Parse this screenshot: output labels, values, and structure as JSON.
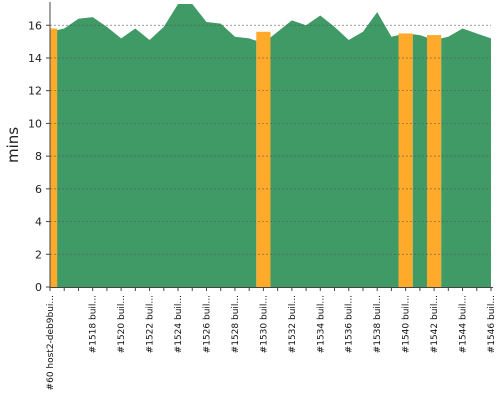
{
  "chart_data": {
    "type": "area",
    "ylabel": "mins",
    "ylim": [
      0,
      17.3
    ],
    "yticks": [
      0,
      2,
      4,
      6,
      8,
      10,
      12,
      14,
      16
    ],
    "reference_line": 16,
    "grid": true,
    "colors": {
      "success": "#3f9a65",
      "unstable": "#ffaa2a",
      "gridline": "#555555"
    },
    "x_labels": [
      "#60 host2-deb9bui...",
      "",
      "",
      "#1518 buil...",
      "",
      "#1520 buil...",
      "",
      "#1522 buil...",
      "",
      "#1524 buil...",
      "",
      "#1526 buil...",
      "",
      "#1528 buil...",
      "",
      "#1530 buil...",
      "",
      "#1532 buil...",
      "",
      "#1534 buil...",
      "",
      "#1536 buil...",
      "",
      "#1538 buil...",
      "",
      "#1540 buil...",
      "",
      "#1542 buil...",
      "",
      "#1544 buil...",
      "",
      "#1546 buil..."
    ],
    "values": [
      15.6,
      15.8,
      16.4,
      16.5,
      15.9,
      15.2,
      15.8,
      15.1,
      15.9,
      17.3,
      17.3,
      16.2,
      16.1,
      15.3,
      15.2,
      14.9,
      15.6,
      16.3,
      16.0,
      16.6,
      15.9,
      15.1,
      15.6,
      16.8,
      15.3,
      15.5,
      15.4,
      15.1,
      15.3,
      15.8,
      15.5,
      15.2
    ],
    "status": [
      "unstable",
      "success",
      "success",
      "success",
      "success",
      "success",
      "success",
      "success",
      "success",
      "success",
      "success",
      "success",
      "success",
      "success",
      "success",
      "unstable",
      "success",
      "success",
      "success",
      "success",
      "success",
      "success",
      "success",
      "success",
      "success",
      "unstable",
      "success",
      "unstable",
      "success",
      "success",
      "success",
      "success"
    ]
  }
}
